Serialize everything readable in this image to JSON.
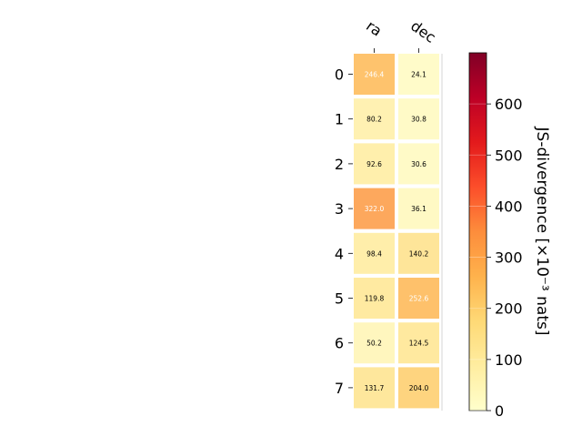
{
  "chart_data": {
    "type": "heatmap",
    "title": "",
    "x_categories": [
      "ra",
      "dec"
    ],
    "y_categories": [
      "0",
      "1",
      "2",
      "3",
      "4",
      "5",
      "6",
      "7"
    ],
    "values": [
      [
        246.4,
        24.1
      ],
      [
        80.2,
        30.8
      ],
      [
        92.6,
        30.6
      ],
      [
        322.0,
        36.1
      ],
      [
        98.4,
        140.2
      ],
      [
        119.8,
        252.6
      ],
      [
        50.2,
        124.5
      ],
      [
        131.7,
        204.0
      ]
    ],
    "cell_labels": [
      [
        "246.4",
        "24.1"
      ],
      [
        "80.2",
        "30.8"
      ],
      [
        "92.6",
        "30.6"
      ],
      [
        "322.0",
        "36.1"
      ],
      [
        "98.4",
        "140.2"
      ],
      [
        "119.8",
        "252.6"
      ],
      [
        "50.2",
        "124.5"
      ],
      [
        "131.7",
        "204.0"
      ]
    ],
    "colormap": "YlOrRd",
    "colorbar": {
      "label": "JS-divergence [×10⁻³ nats]",
      "range": [
        0,
        700
      ],
      "ticks": [
        0,
        100,
        200,
        300,
        400,
        500,
        600
      ],
      "tick_labels": [
        "0",
        "100",
        "200",
        "300",
        "400",
        "500",
        "600"
      ]
    },
    "grid": false
  }
}
